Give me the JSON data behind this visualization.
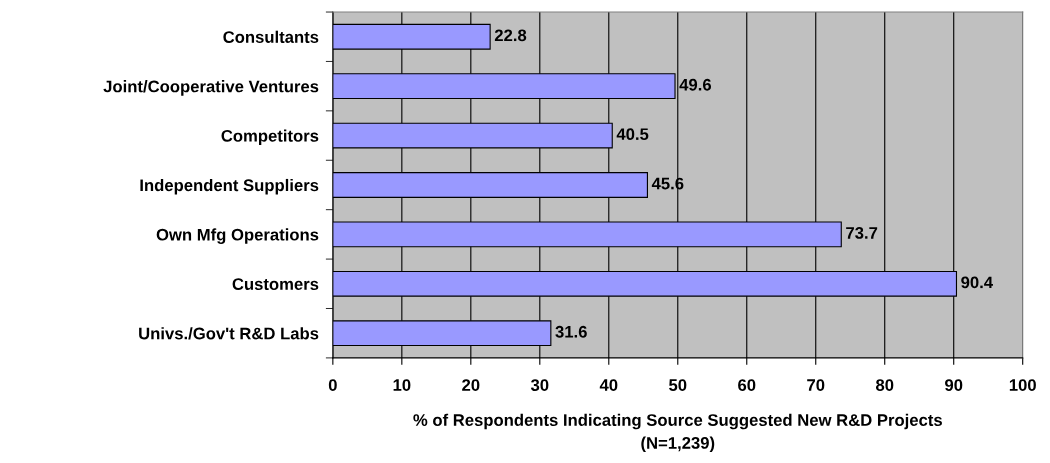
{
  "chart_data": {
    "type": "bar",
    "orientation": "horizontal",
    "categories": [
      "Consultants",
      "Joint/Cooperative Ventures",
      "Competitors",
      "Independent Suppliers",
      "Own Mfg Operations",
      "Customers",
      "Univs./Gov't R&D Labs"
    ],
    "values": [
      22.8,
      49.6,
      40.5,
      45.6,
      73.7,
      90.4,
      31.6
    ],
    "color": "#9999ff",
    "xlabel": "% of Respondents Indicating Source Suggested New R&D Projects\n(N=1,239)",
    "xlim": [
      0,
      100
    ],
    "xticks": [
      0,
      10,
      20,
      30,
      40,
      50,
      60,
      70,
      80,
      90,
      100
    ],
    "grid": "x",
    "data_labels": true
  }
}
